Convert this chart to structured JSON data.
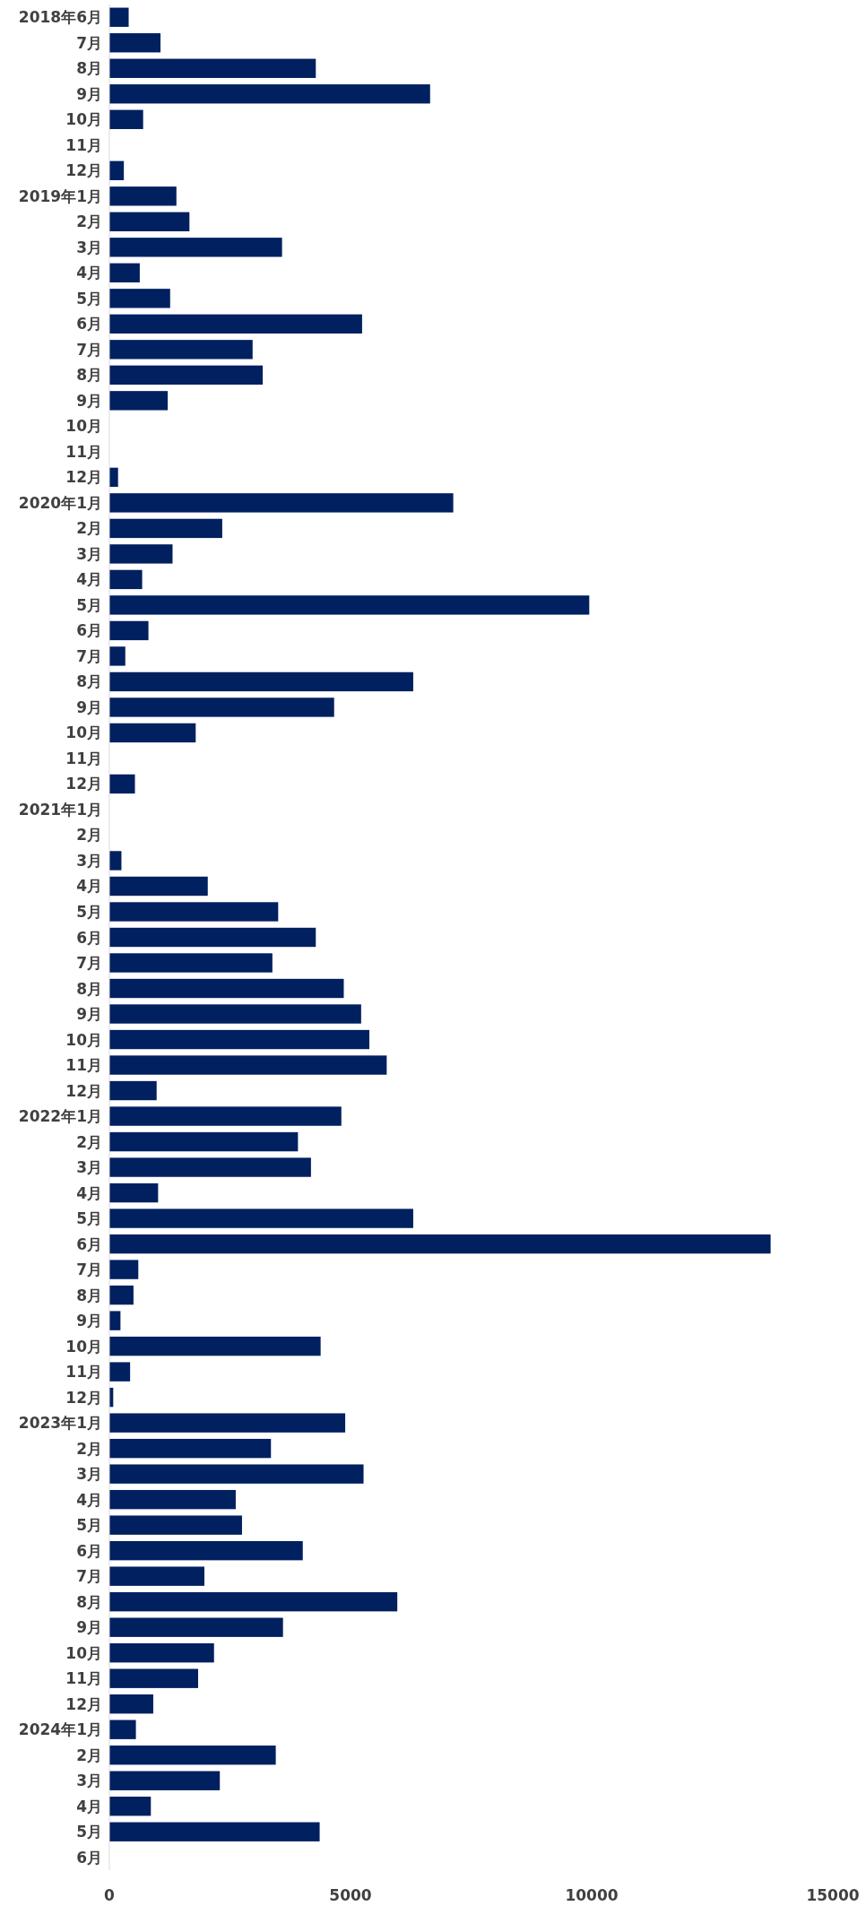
{
  "chart_data": {
    "type": "bar",
    "orientation": "horizontal",
    "color": "#002060",
    "categories": [
      "2018年6月",
      "7月",
      "8月",
      "9月",
      "10月",
      "11月",
      "12月",
      "2019年1月",
      "2月",
      "3月",
      "4月",
      "5月",
      "6月",
      "7月",
      "8月",
      "9月",
      "10月",
      "11月",
      "12月",
      "2020年1月",
      "2月",
      "3月",
      "4月",
      "5月",
      "6月",
      "7月",
      "8月",
      "9月",
      "10月",
      "11月",
      "12月",
      "2021年1月",
      "2月",
      "3月",
      "4月",
      "5月",
      "6月",
      "7月",
      "8月",
      "9月",
      "10月",
      "11月",
      "12月",
      "2022年1月",
      "2月",
      "3月",
      "4月",
      "5月",
      "6月",
      "7月",
      "8月",
      "9月",
      "10月",
      "11月",
      "12月",
      "2023年1月",
      "2月",
      "3月",
      "4月",
      "5月",
      "6月",
      "7月",
      "8月",
      "9月",
      "10月",
      "11月",
      "12月",
      "2024年1月",
      "2月",
      "3月",
      "4月",
      "5月",
      "6月"
    ],
    "values": [
      400,
      1060,
      4280,
      6650,
      700,
      null,
      300,
      1390,
      1660,
      3580,
      630,
      1260,
      5240,
      2970,
      3180,
      1210,
      null,
      null,
      180,
      7130,
      2340,
      1310,
      680,
      9950,
      810,
      330,
      6300,
      4660,
      1790,
      null,
      530,
      null,
      null,
      250,
      2040,
      3500,
      4280,
      3380,
      4860,
      5220,
      5390,
      5750,
      980,
      4810,
      3910,
      4180,
      1010,
      6300,
      13710,
      600,
      500,
      230,
      4380,
      430,
      80,
      4890,
      3350,
      5270,
      2620,
      2750,
      4010,
      1970,
      5970,
      3600,
      2170,
      1840,
      910,
      550,
      3450,
      2290,
      860,
      4360,
      null
    ],
    "xlim": [
      0,
      15000
    ],
    "xticks": [
      0,
      5000,
      10000,
      15000
    ]
  }
}
